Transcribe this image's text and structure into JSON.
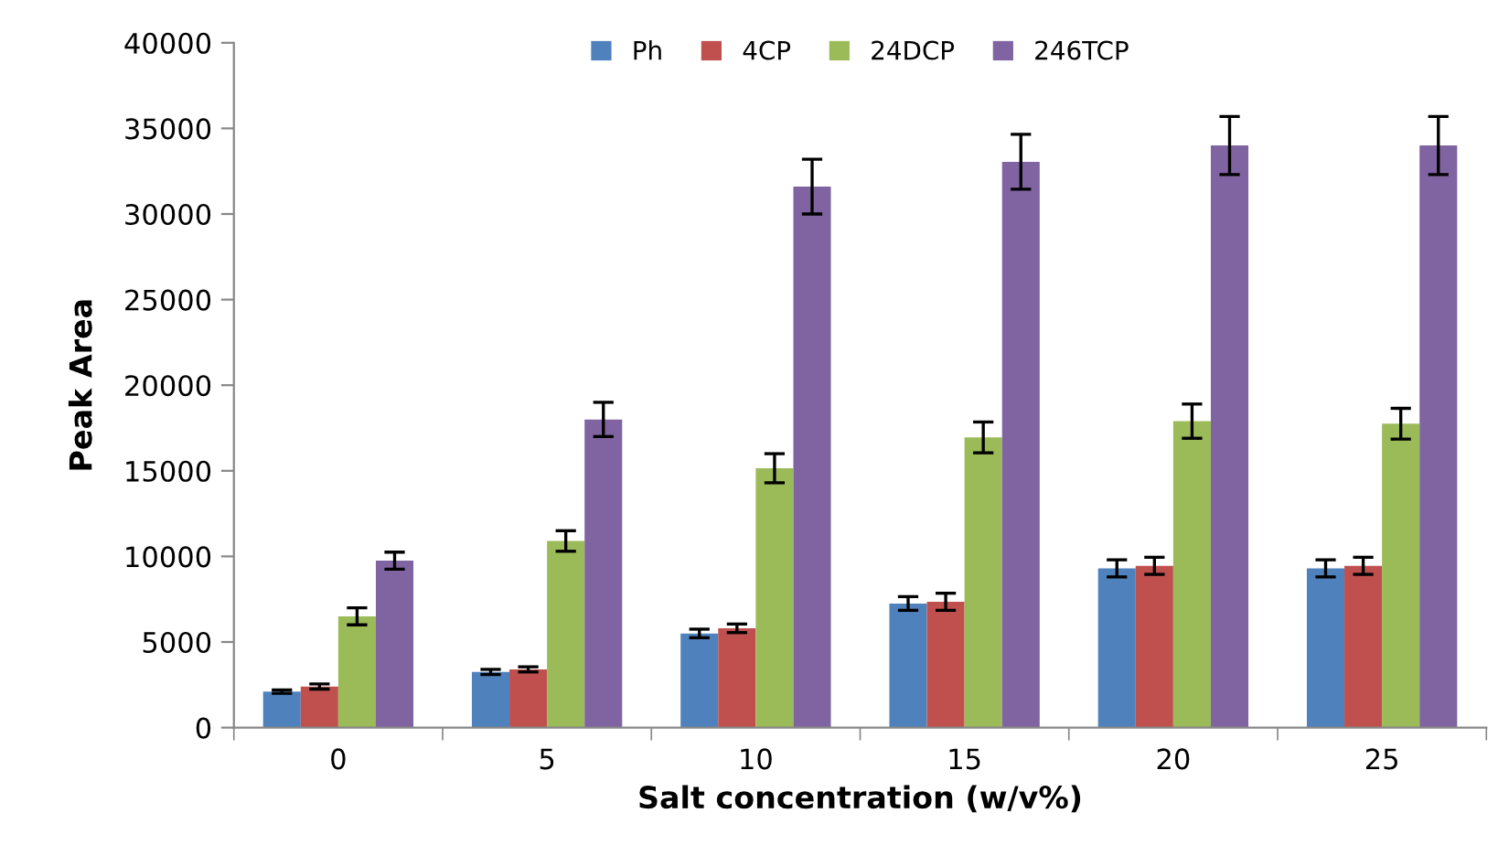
{
  "chart_data": {
    "type": "bar",
    "xlabel": "Salt concentration (w/v%)",
    "ylabel": "Peak Area",
    "categories": [
      "0",
      "5",
      "10",
      "15",
      "20",
      "25"
    ],
    "series": [
      {
        "name": "Ph",
        "color": "#4f81bd",
        "values": [
          2100,
          3250,
          5500,
          7250,
          9300,
          9300
        ],
        "errors": [
          100,
          150,
          250,
          400,
          500,
          500
        ]
      },
      {
        "name": "4CP",
        "color": "#c0504d",
        "values": [
          2400,
          3400,
          5800,
          7350,
          9450,
          9450
        ],
        "errors": [
          150,
          150,
          250,
          500,
          500,
          500
        ]
      },
      {
        "name": "24DCP",
        "color": "#9bbb59",
        "values": [
          6500,
          10900,
          15150,
          16950,
          17900,
          17750
        ],
        "errors": [
          500,
          600,
          850,
          900,
          1000,
          900
        ]
      },
      {
        "name": "246TCP",
        "color": "#8064a2",
        "values": [
          9750,
          18000,
          31600,
          33050,
          34000,
          34000
        ],
        "errors": [
          500,
          1000,
          1600,
          1600,
          1700,
          1700
        ]
      }
    ],
    "ylim": [
      0,
      40000
    ],
    "yticks": [
      0,
      5000,
      10000,
      15000,
      20000,
      25000,
      30000,
      35000,
      40000
    ],
    "grid": false,
    "legend": "top"
  }
}
